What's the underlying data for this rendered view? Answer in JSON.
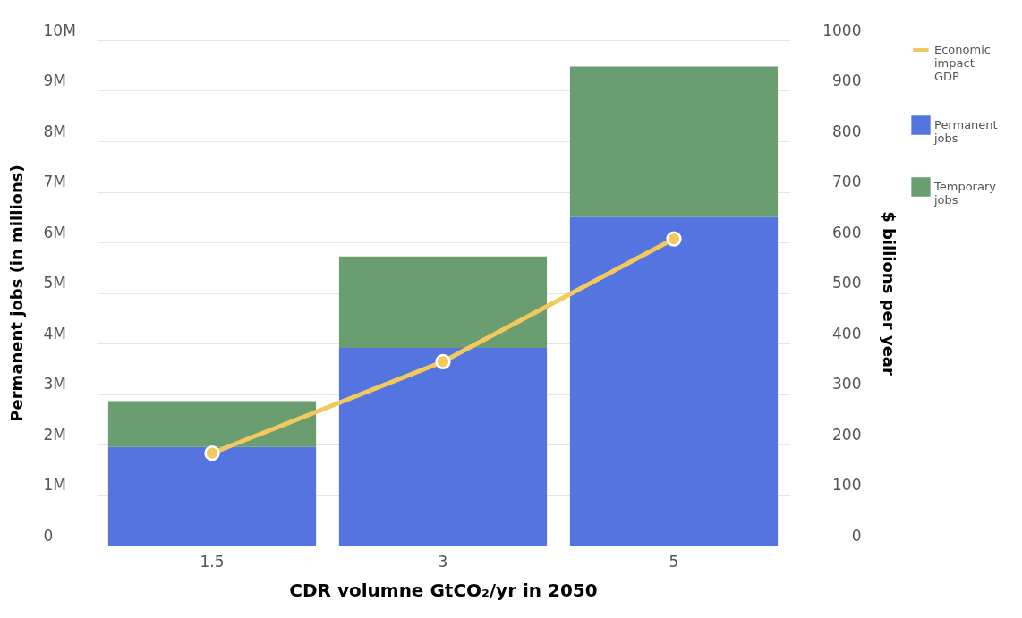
{
  "chart_data": {
    "type": "bar",
    "stacked": true,
    "xlabel": "CDR volumne GtCO₂/yr in 2050",
    "ylabel": "Permanent jobs  (in millions)",
    "y2label": "$ billions per year",
    "categories": [
      "1.5",
      "3",
      "5"
    ],
    "series": [
      {
        "name": "Economic impact GDP",
        "type": "line",
        "axis": "y2",
        "color": "#f2c95c",
        "values": [
          183,
          364,
          607
        ],
        "marker": "circle"
      },
      {
        "name": "Permanent jobs",
        "color": "#5474e0",
        "values": [
          1.95,
          3.91,
          6.5
        ]
      },
      {
        "name": "Temporary jobs",
        "color": "#6a9e70",
        "values": [
          0.91,
          1.81,
          2.98
        ]
      }
    ],
    "ylim": [
      0,
      10
    ],
    "yticks": [
      0,
      {
        "value": 1,
        "label": "1M"
      },
      {
        "value": 2,
        "label": "2M"
      },
      {
        "value": 3,
        "label": "3M"
      },
      {
        "value": 4,
        "label": "4M"
      },
      {
        "value": 5,
        "label": "5M"
      },
      {
        "value": 6,
        "label": "6M"
      },
      {
        "value": 7,
        "label": "7M"
      },
      {
        "value": 8,
        "label": "8M"
      },
      {
        "value": 9,
        "label": "9M"
      },
      {
        "value": 10,
        "label": "10M"
      }
    ],
    "y2lim": [
      0,
      1000
    ],
    "y2ticks": [
      0,
      100,
      200,
      300,
      400,
      500,
      600,
      700,
      800,
      900,
      1000
    ],
    "grid": "y",
    "legend": "top right"
  }
}
